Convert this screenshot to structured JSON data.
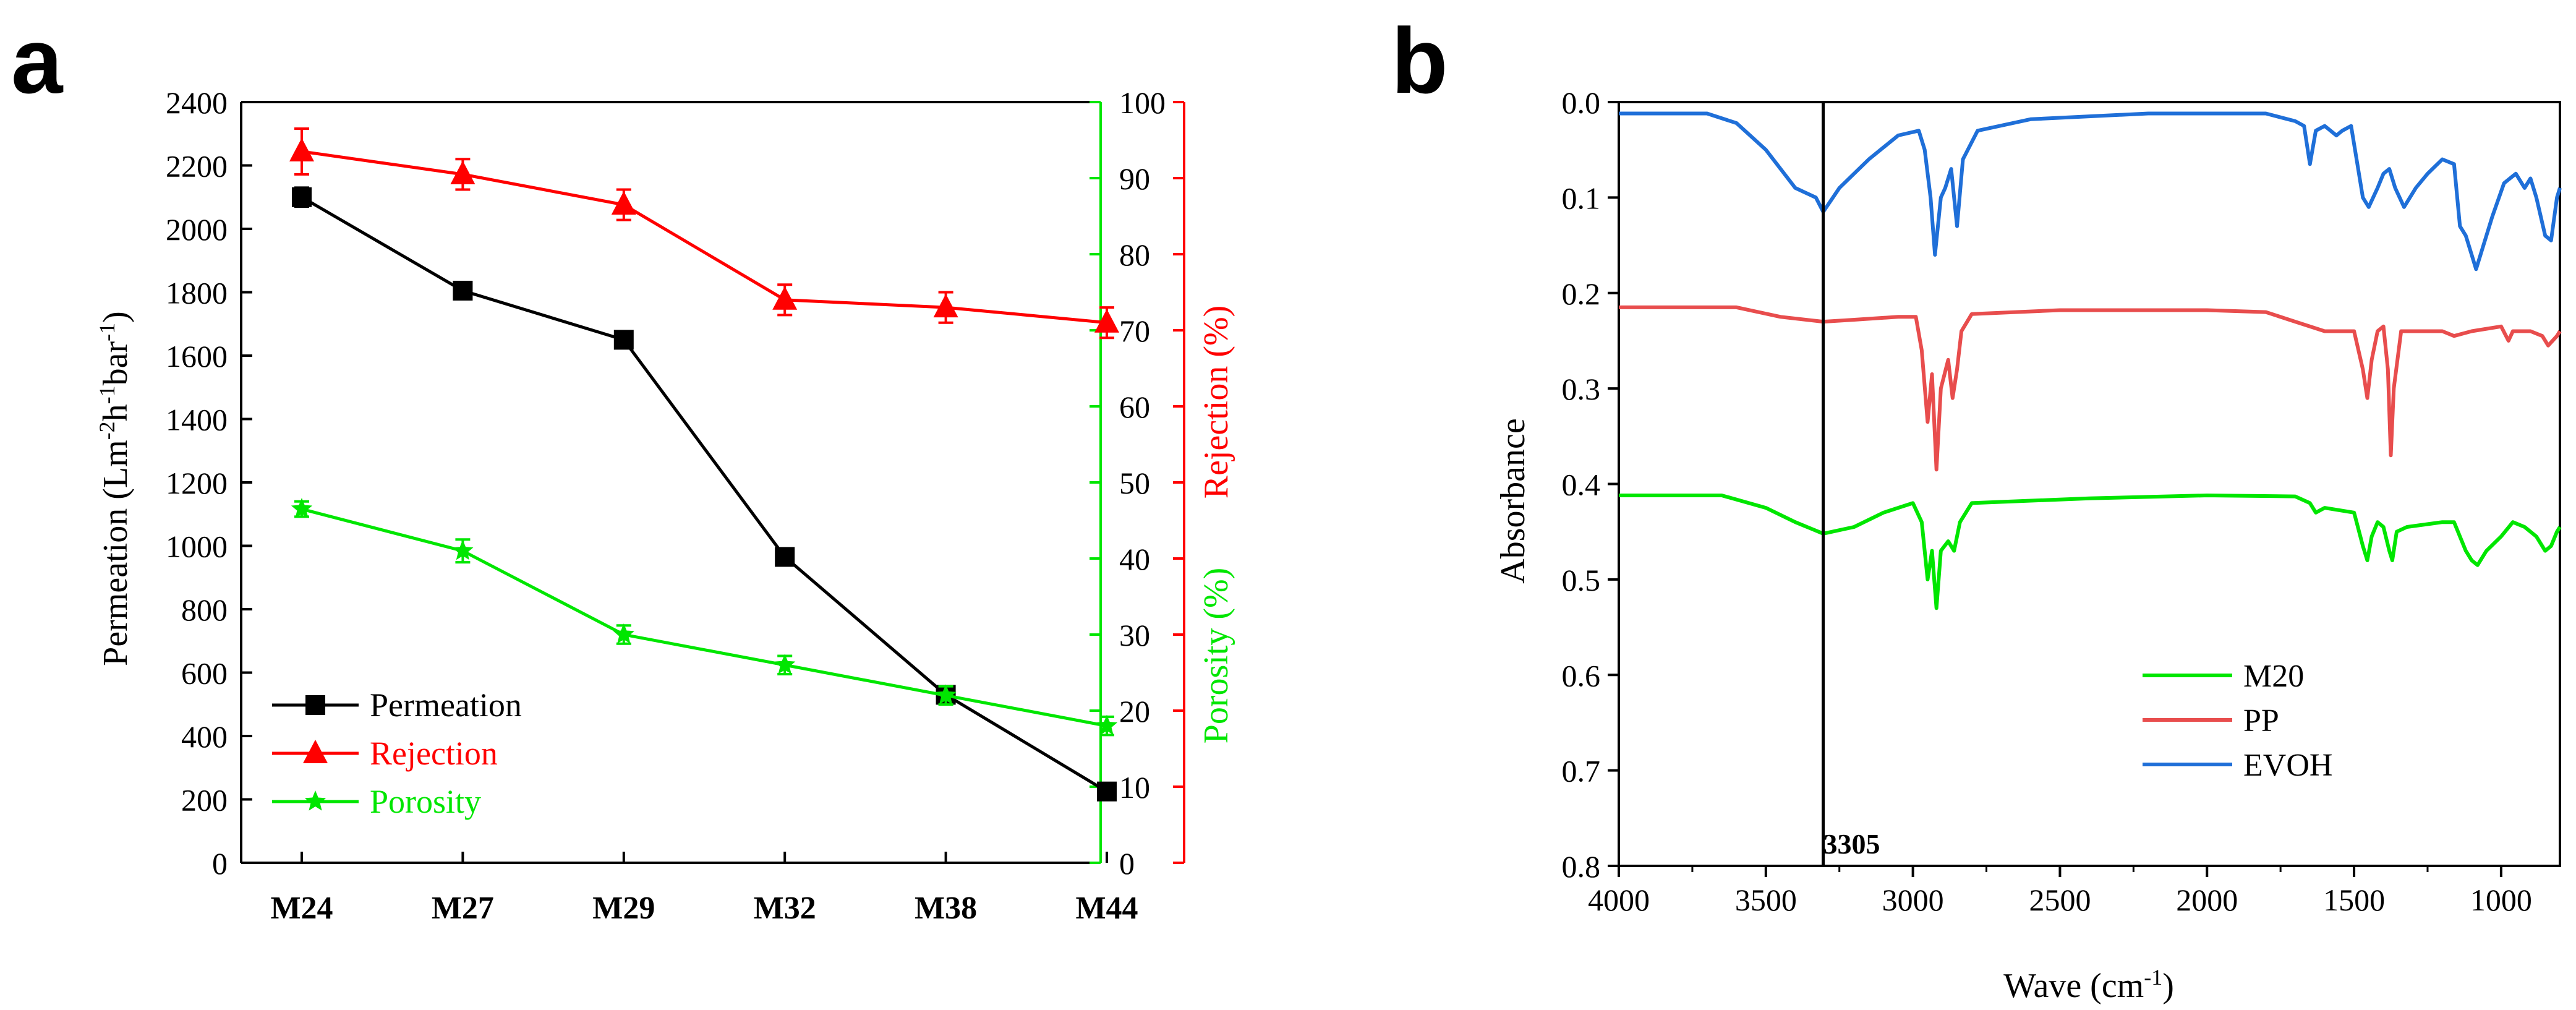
{
  "panel_labels": [
    "a",
    "b"
  ],
  "chart_data": [
    {
      "type": "line",
      "panel": "a",
      "title": "",
      "categories": [
        "M24",
        "M27",
        "M29",
        "M32",
        "M38",
        "M44"
      ],
      "xlabel": "",
      "ylabel": "Permeation (Lm-2h-1bar-1)",
      "ylabel_parts": [
        "Permeation (Lm",
        "-2",
        "h",
        "-1",
        "bar",
        "-1",
        ")"
      ],
      "ylim": [
        0,
        2400
      ],
      "yticks": [
        "0",
        "200",
        "400",
        "600",
        "800",
        "1000",
        "1200",
        "1400",
        "1600",
        "1800",
        "2000",
        "2200",
        "2400"
      ],
      "y2label_rejection": "Rejection (%)",
      "y2label_porosity": "Porosity (%)",
      "y2lim": [
        0,
        100
      ],
      "y2ticks": [
        "0",
        "10",
        "20",
        "30",
        "40",
        "50",
        "60",
        "70",
        "80",
        "90",
        "100"
      ],
      "series": [
        {
          "name": "Permeation",
          "axis": "left",
          "color": "#000000",
          "marker": "square",
          "values": [
            2100,
            1805,
            1650,
            965,
            530,
            225
          ],
          "errors": [
            30,
            15,
            15,
            25,
            20,
            15
          ]
        },
        {
          "name": "Rejection",
          "axis": "right",
          "color": "#ff0000",
          "marker": "triangle",
          "values": [
            93.5,
            90.5,
            86.5,
            74.0,
            73.0,
            71.0
          ],
          "errors": [
            3.0,
            2.0,
            2.0,
            2.0,
            2.0,
            2.0
          ]
        },
        {
          "name": "Porosity",
          "axis": "right",
          "color": "#00e600",
          "marker": "star",
          "values": [
            46.5,
            41.0,
            30.0,
            26.0,
            22.0,
            18.0
          ],
          "errors": [
            1.0,
            1.5,
            1.2,
            1.2,
            1.2,
            1.2
          ]
        }
      ],
      "legend": [
        "Permeation",
        "Rejection",
        "Porosity"
      ],
      "legend_position": "bottom-left"
    },
    {
      "type": "line",
      "panel": "b",
      "title": "",
      "xlabel": "Wave (cm-1)",
      "xlabel_parts": [
        "Wave (cm",
        "-1",
        ")"
      ],
      "ylabel": "Absorbance",
      "xlim": [
        4000,
        800
      ],
      "xticks": [
        4000,
        3500,
        3000,
        2500,
        2000,
        1500,
        1000
      ],
      "ylim": [
        0.0,
        0.8
      ],
      "ylim_inverted": true,
      "yticks": [
        "0.0",
        "0.1",
        "0.2",
        "0.3",
        "0.4",
        "0.5",
        "0.6",
        "0.7",
        "0.8"
      ],
      "annotation": {
        "label": "3305",
        "x": 3305
      },
      "legend": [
        "M20",
        "PP",
        "EVOH"
      ],
      "legend_position": "bottom-center",
      "series": [
        {
          "name": "EVOH",
          "color": "#1f6fd8",
          "points": [
            [
              4000,
              0.012
            ],
            [
              3700,
              0.012
            ],
            [
              3600,
              0.022
            ],
            [
              3500,
              0.05
            ],
            [
              3400,
              0.09
            ],
            [
              3330,
              0.1
            ],
            [
              3305,
              0.115
            ],
            [
              3250,
              0.09
            ],
            [
              3150,
              0.06
            ],
            [
              3050,
              0.035
            ],
            [
              2980,
              0.03
            ],
            [
              2960,
              0.05
            ],
            [
              2940,
              0.1
            ],
            [
              2925,
              0.16
            ],
            [
              2905,
              0.1
            ],
            [
              2890,
              0.09
            ],
            [
              2870,
              0.07
            ],
            [
              2850,
              0.13
            ],
            [
              2830,
              0.06
            ],
            [
              2780,
              0.03
            ],
            [
              2600,
              0.018
            ],
            [
              2200,
              0.012
            ],
            [
              1800,
              0.012
            ],
            [
              1700,
              0.02
            ],
            [
              1670,
              0.025
            ],
            [
              1650,
              0.065
            ],
            [
              1630,
              0.03
            ],
            [
              1600,
              0.025
            ],
            [
              1560,
              0.035
            ],
            [
              1540,
              0.03
            ],
            [
              1510,
              0.025
            ],
            [
              1470,
              0.1
            ],
            [
              1450,
              0.11
            ],
            [
              1420,
              0.09
            ],
            [
              1400,
              0.075
            ],
            [
              1380,
              0.07
            ],
            [
              1360,
              0.09
            ],
            [
              1330,
              0.11
            ],
            [
              1290,
              0.09
            ],
            [
              1250,
              0.075
            ],
            [
              1200,
              0.06
            ],
            [
              1160,
              0.065
            ],
            [
              1140,
              0.13
            ],
            [
              1120,
              0.14
            ],
            [
              1100,
              0.16
            ],
            [
              1085,
              0.175
            ],
            [
              1060,
              0.15
            ],
            [
              1030,
              0.12
            ],
            [
              990,
              0.085
            ],
            [
              950,
              0.075
            ],
            [
              920,
              0.09
            ],
            [
              900,
              0.08
            ],
            [
              880,
              0.1
            ],
            [
              850,
              0.14
            ],
            [
              830,
              0.145
            ],
            [
              810,
              0.1
            ],
            [
              800,
              0.09
            ]
          ]
        },
        {
          "name": "PP",
          "color": "#e84d4d",
          "points": [
            [
              4000,
              0.215
            ],
            [
              3600,
              0.215
            ],
            [
              3450,
              0.225
            ],
            [
              3305,
              0.23
            ],
            [
              3200,
              0.228
            ],
            [
              3050,
              0.225
            ],
            [
              2990,
              0.225
            ],
            [
              2970,
              0.26
            ],
            [
              2950,
              0.335
            ],
            [
              2935,
              0.285
            ],
            [
              2920,
              0.385
            ],
            [
              2905,
              0.3
            ],
            [
              2880,
              0.27
            ],
            [
              2865,
              0.31
            ],
            [
              2850,
              0.28
            ],
            [
              2835,
              0.24
            ],
            [
              2800,
              0.222
            ],
            [
              2500,
              0.218
            ],
            [
              2000,
              0.218
            ],
            [
              1800,
              0.22
            ],
            [
              1700,
              0.23
            ],
            [
              1600,
              0.24
            ],
            [
              1500,
              0.24
            ],
            [
              1470,
              0.28
            ],
            [
              1455,
              0.31
            ],
            [
              1440,
              0.27
            ],
            [
              1420,
              0.24
            ],
            [
              1400,
              0.235
            ],
            [
              1385,
              0.28
            ],
            [
              1375,
              0.37
            ],
            [
              1365,
              0.3
            ],
            [
              1340,
              0.24
            ],
            [
              1200,
              0.24
            ],
            [
              1160,
              0.245
            ],
            [
              1100,
              0.24
            ],
            [
              1000,
              0.235
            ],
            [
              975,
              0.25
            ],
            [
              960,
              0.24
            ],
            [
              900,
              0.24
            ],
            [
              860,
              0.245
            ],
            [
              840,
              0.255
            ],
            [
              810,
              0.245
            ],
            [
              800,
              0.24
            ]
          ]
        },
        {
          "name": "M20",
          "color": "#00e600",
          "points": [
            [
              4000,
              0.412
            ],
            [
              3650,
              0.412
            ],
            [
              3500,
              0.425
            ],
            [
              3400,
              0.44
            ],
            [
              3305,
              0.452
            ],
            [
              3200,
              0.445
            ],
            [
              3100,
              0.43
            ],
            [
              3000,
              0.42
            ],
            [
              2970,
              0.44
            ],
            [
              2950,
              0.5
            ],
            [
              2935,
              0.47
            ],
            [
              2920,
              0.53
            ],
            [
              2905,
              0.47
            ],
            [
              2880,
              0.46
            ],
            [
              2860,
              0.47
            ],
            [
              2840,
              0.44
            ],
            [
              2800,
              0.42
            ],
            [
              2400,
              0.415
            ],
            [
              2000,
              0.412
            ],
            [
              1700,
              0.413
            ],
            [
              1650,
              0.42
            ],
            [
              1630,
              0.43
            ],
            [
              1600,
              0.425
            ],
            [
              1500,
              0.43
            ],
            [
              1470,
              0.465
            ],
            [
              1455,
              0.48
            ],
            [
              1440,
              0.455
            ],
            [
              1420,
              0.44
            ],
            [
              1400,
              0.445
            ],
            [
              1380,
              0.47
            ],
            [
              1370,
              0.48
            ],
            [
              1355,
              0.45
            ],
            [
              1320,
              0.445
            ],
            [
              1200,
              0.44
            ],
            [
              1160,
              0.44
            ],
            [
              1120,
              0.47
            ],
            [
              1100,
              0.48
            ],
            [
              1080,
              0.485
            ],
            [
              1050,
              0.47
            ],
            [
              1000,
              0.455
            ],
            [
              960,
              0.44
            ],
            [
              920,
              0.445
            ],
            [
              880,
              0.455
            ],
            [
              850,
              0.47
            ],
            [
              830,
              0.465
            ],
            [
              810,
              0.45
            ],
            [
              800,
              0.445
            ]
          ]
        }
      ]
    }
  ]
}
